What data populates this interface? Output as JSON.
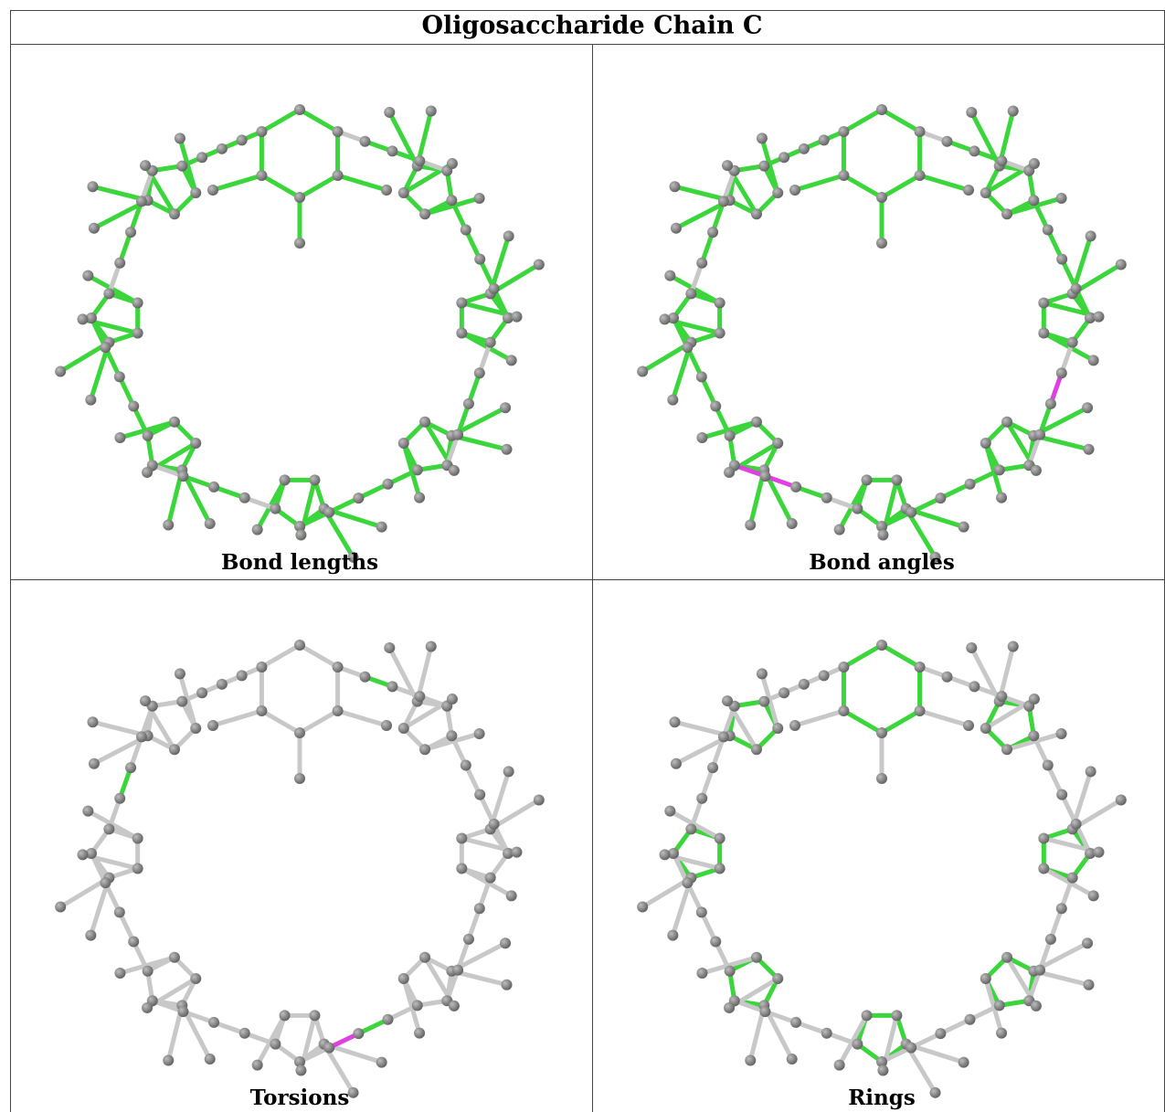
{
  "title": "Oligosaccharide Chain C",
  "panels": [
    {
      "caption": "Bond lengths"
    },
    {
      "caption": "Bond angles"
    },
    {
      "caption": "Torsions"
    },
    {
      "caption": "Rings"
    }
  ]
}
